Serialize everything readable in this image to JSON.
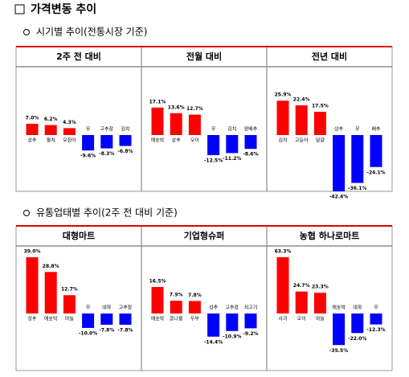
{
  "title": "가격변동 추이",
  "sections": [
    {
      "heading": "시기별 추이(전통시장 기준)",
      "charts": [
        {
          "type": "bar",
          "title": "2주 전 대비",
          "categories": [
            "상추",
            "멸치",
            "오징어",
            "무",
            "고추장",
            "김치"
          ],
          "values": [
            7.0,
            6.2,
            4.3,
            -9.6,
            -8.3,
            -6.8
          ],
          "value_labels": [
            "7.0%",
            "6.2%",
            "4.3%",
            "-9.6%",
            "-8.3%",
            "-6.8%"
          ],
          "colors": [
            "#ff0000",
            "#ff0000",
            "#ff0000",
            "#0000ff",
            "#0000ff",
            "#0000ff"
          ]
        },
        {
          "type": "bar",
          "title": "전월 대비",
          "categories": [
            "애호박",
            "상추",
            "오이",
            "무",
            "김치",
            "양배추"
          ],
          "values": [
            17.1,
            13.6,
            12.7,
            -12.5,
            -11.2,
            -8.6
          ],
          "value_labels": [
            "17.1%",
            "13.6%",
            "12.7%",
            "-12.5%",
            "-11.2%",
            "-8.6%"
          ],
          "colors": [
            "#ff0000",
            "#ff0000",
            "#ff0000",
            "#0000ff",
            "#0000ff",
            "#0000ff"
          ]
        },
        {
          "type": "bar",
          "title": "전년 대비",
          "categories": [
            "김치",
            "고등어",
            "달걀",
            "상추",
            "무",
            "배추"
          ],
          "values": [
            25.9,
            22.4,
            17.5,
            -42.4,
            -36.1,
            -24.1
          ],
          "value_labels": [
            "25.9%",
            "22.4%",
            "17.5%",
            "-42.4%",
            "-36.1%",
            "-24.1%"
          ],
          "colors": [
            "#ff0000",
            "#ff0000",
            "#ff0000",
            "#0000ff",
            "#0000ff",
            "#0000ff"
          ]
        }
      ]
    },
    {
      "heading": "유통업태별 추이(2주 전 대비 기준)",
      "charts": [
        {
          "type": "bar",
          "title": "대형마트",
          "categories": [
            "상추",
            "애호박",
            "마늘",
            "무",
            "대파",
            "고추장"
          ],
          "values": [
            39.0,
            28.8,
            12.7,
            -10.0,
            -7.8,
            -7.8
          ],
          "value_labels": [
            "39.0%",
            "28.8%",
            "12.7%",
            "-10.0%",
            "-7.8%",
            "-7.8%"
          ],
          "colors": [
            "#ff0000",
            "#ff0000",
            "#ff0000",
            "#0000ff",
            "#0000ff",
            "#0000ff"
          ]
        },
        {
          "type": "bar",
          "title": "기업형슈퍼",
          "categories": [
            "애호박",
            "콩나물",
            "두부",
            "상추",
            "고추장",
            "쇠고기"
          ],
          "values": [
            16.5,
            7.9,
            7.8,
            -14.4,
            -10.9,
            -9.2
          ],
          "value_labels": [
            "16.5%",
            "7.9%",
            "7.8%",
            "-14.4%",
            "-10.9%",
            "-9.2%"
          ],
          "colors": [
            "#ff0000",
            "#ff0000",
            "#ff0000",
            "#0000ff",
            "#0000ff",
            "#0000ff"
          ]
        },
        {
          "type": "bar",
          "title": "농협 하나로마트",
          "categories": [
            "사과",
            "오이",
            "마늘",
            "애호박",
            "대파",
            "무"
          ],
          "values": [
            63.3,
            24.7,
            23.3,
            -35.5,
            -22.0,
            -12.3
          ],
          "value_labels": [
            "63.3%",
            "24.7%",
            "23.3%",
            "-35.5%",
            "-22.0%",
            "-12.3%"
          ],
          "colors": [
            "#ff0000",
            "#ff0000",
            "#ff0000",
            "#0000ff",
            "#0000ff",
            "#0000ff"
          ]
        }
      ]
    }
  ]
}
